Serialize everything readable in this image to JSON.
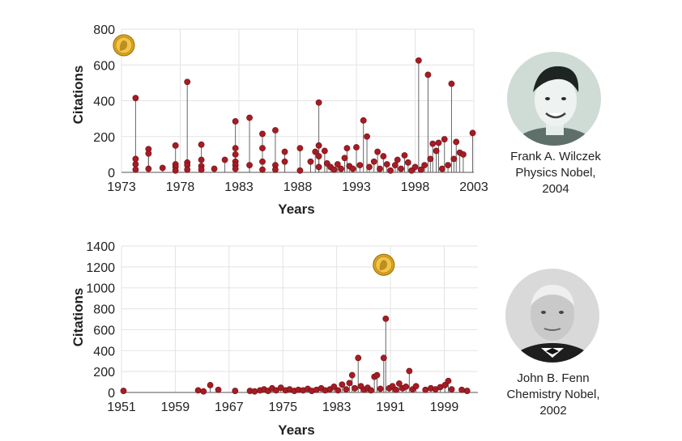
{
  "chart_data": [
    {
      "type": "scatter",
      "style": "lollipop",
      "xlabel": "Years",
      "ylabel": "Citations",
      "xlim": [
        1973,
        2003
      ],
      "ylim": [
        0,
        800
      ],
      "xticks": [
        1973,
        1978,
        1983,
        1988,
        1993,
        1998,
        2003
      ],
      "yticks": [
        0,
        200,
        400,
        600,
        800
      ],
      "grid": true,
      "marker_color": "#a51c24",
      "prize_marker": {
        "icon": "nobel-medal-icon",
        "x": 1973.2,
        "y": 710
      },
      "points": [
        {
          "x": 1974.2,
          "y": 415
        },
        {
          "x": 1974.2,
          "y": 75
        },
        {
          "x": 1974.2,
          "y": 45
        },
        {
          "x": 1974.2,
          "y": 15
        },
        {
          "x": 1975.3,
          "y": 130
        },
        {
          "x": 1975.3,
          "y": 105
        },
        {
          "x": 1975.3,
          "y": 20
        },
        {
          "x": 1976.5,
          "y": 25
        },
        {
          "x": 1977.6,
          "y": 150
        },
        {
          "x": 1977.6,
          "y": 45
        },
        {
          "x": 1977.6,
          "y": 30
        },
        {
          "x": 1977.6,
          "y": 10
        },
        {
          "x": 1978.6,
          "y": 505
        },
        {
          "x": 1978.6,
          "y": 55
        },
        {
          "x": 1978.6,
          "y": 40
        },
        {
          "x": 1978.6,
          "y": 15
        },
        {
          "x": 1979.8,
          "y": 155
        },
        {
          "x": 1979.8,
          "y": 70
        },
        {
          "x": 1979.8,
          "y": 35
        },
        {
          "x": 1979.8,
          "y": 15
        },
        {
          "x": 1980.9,
          "y": 20
        },
        {
          "x": 1981.8,
          "y": 70
        },
        {
          "x": 1982.7,
          "y": 285
        },
        {
          "x": 1982.7,
          "y": 135
        },
        {
          "x": 1982.7,
          "y": 100
        },
        {
          "x": 1982.7,
          "y": 60
        },
        {
          "x": 1982.7,
          "y": 40
        },
        {
          "x": 1982.7,
          "y": 20
        },
        {
          "x": 1983.9,
          "y": 305
        },
        {
          "x": 1983.9,
          "y": 40
        },
        {
          "x": 1985.0,
          "y": 215
        },
        {
          "x": 1985.0,
          "y": 135
        },
        {
          "x": 1985.0,
          "y": 60
        },
        {
          "x": 1985.0,
          "y": 15
        },
        {
          "x": 1986.1,
          "y": 235
        },
        {
          "x": 1986.1,
          "y": 40
        },
        {
          "x": 1986.1,
          "y": 15
        },
        {
          "x": 1986.9,
          "y": 115
        },
        {
          "x": 1986.9,
          "y": 60
        },
        {
          "x": 1988.2,
          "y": 135
        },
        {
          "x": 1988.2,
          "y": 10
        },
        {
          "x": 1989.1,
          "y": 60
        },
        {
          "x": 1989.5,
          "y": 115
        },
        {
          "x": 1989.8,
          "y": 390
        },
        {
          "x": 1989.8,
          "y": 150
        },
        {
          "x": 1989.8,
          "y": 90
        },
        {
          "x": 1989.8,
          "y": 30
        },
        {
          "x": 1990.3,
          "y": 120
        },
        {
          "x": 1990.5,
          "y": 50
        },
        {
          "x": 1990.8,
          "y": 30
        },
        {
          "x": 1991.1,
          "y": 15
        },
        {
          "x": 1991.4,
          "y": 45
        },
        {
          "x": 1991.7,
          "y": 20
        },
        {
          "x": 1992.0,
          "y": 80
        },
        {
          "x": 1992.2,
          "y": 135
        },
        {
          "x": 1992.4,
          "y": 35
        },
        {
          "x": 1992.7,
          "y": 20
        },
        {
          "x": 1993.0,
          "y": 140
        },
        {
          "x": 1993.3,
          "y": 40
        },
        {
          "x": 1993.6,
          "y": 290
        },
        {
          "x": 1993.9,
          "y": 200
        },
        {
          "x": 1994.1,
          "y": 30
        },
        {
          "x": 1994.5,
          "y": 60
        },
        {
          "x": 1994.8,
          "y": 115
        },
        {
          "x": 1995.0,
          "y": 20
        },
        {
          "x": 1995.3,
          "y": 90
        },
        {
          "x": 1995.6,
          "y": 45
        },
        {
          "x": 1995.9,
          "y": 10
        },
        {
          "x": 1996.3,
          "y": 40
        },
        {
          "x": 1996.5,
          "y": 70
        },
        {
          "x": 1996.8,
          "y": 20
        },
        {
          "x": 1997.1,
          "y": 95
        },
        {
          "x": 1997.4,
          "y": 55
        },
        {
          "x": 1997.7,
          "y": 10
        },
        {
          "x": 1998.0,
          "y": 30
        },
        {
          "x": 1998.3,
          "y": 625
        },
        {
          "x": 1998.5,
          "y": 15
        },
        {
          "x": 1998.8,
          "y": 40
        },
        {
          "x": 1999.1,
          "y": 545
        },
        {
          "x": 1999.3,
          "y": 75
        },
        {
          "x": 1999.5,
          "y": 160
        },
        {
          "x": 1999.8,
          "y": 120
        },
        {
          "x": 2000.0,
          "y": 165
        },
        {
          "x": 2000.3,
          "y": 20
        },
        {
          "x": 2000.5,
          "y": 185
        },
        {
          "x": 2000.8,
          "y": 40
        },
        {
          "x": 2001.1,
          "y": 495
        },
        {
          "x": 2001.3,
          "y": 75
        },
        {
          "x": 2001.5,
          "y": 170
        },
        {
          "x": 2001.8,
          "y": 110
        },
        {
          "x": 2002.1,
          "y": 100
        },
        {
          "x": 2002.9,
          "y": 220
        }
      ]
    },
    {
      "type": "scatter",
      "style": "lollipop",
      "xlabel": "Years",
      "ylabel": "Citations",
      "xlim": [
        1951,
        2004
      ],
      "ylim": [
        0,
        1400
      ],
      "xticks": [
        1951,
        1959,
        1967,
        1975,
        1983,
        1991,
        1999
      ],
      "yticks": [
        0,
        200,
        400,
        600,
        800,
        1000,
        1200,
        1400
      ],
      "grid": true,
      "marker_color": "#a51c24",
      "prize_marker": {
        "icon": "nobel-medal-icon",
        "x": 1990.0,
        "y": 1220
      },
      "points": [
        {
          "x": 1951.3,
          "y": 15
        },
        {
          "x": 1962.4,
          "y": 20
        },
        {
          "x": 1963.2,
          "y": 10
        },
        {
          "x": 1964.2,
          "y": 70
        },
        {
          "x": 1965.4,
          "y": 25
        },
        {
          "x": 1967.9,
          "y": 15
        },
        {
          "x": 1970.1,
          "y": 15
        },
        {
          "x": 1970.8,
          "y": 10
        },
        {
          "x": 1971.6,
          "y": 20
        },
        {
          "x": 1972.2,
          "y": 30
        },
        {
          "x": 1972.8,
          "y": 15
        },
        {
          "x": 1973.4,
          "y": 40
        },
        {
          "x": 1974.0,
          "y": 20
        },
        {
          "x": 1974.7,
          "y": 45
        },
        {
          "x": 1975.4,
          "y": 20
        },
        {
          "x": 1976.0,
          "y": 30
        },
        {
          "x": 1976.7,
          "y": 15
        },
        {
          "x": 1977.3,
          "y": 25
        },
        {
          "x": 1978.0,
          "y": 20
        },
        {
          "x": 1978.7,
          "y": 35
        },
        {
          "x": 1979.3,
          "y": 15
        },
        {
          "x": 1980.0,
          "y": 25
        },
        {
          "x": 1980.7,
          "y": 40
        },
        {
          "x": 1981.3,
          "y": 20
        },
        {
          "x": 1982.0,
          "y": 30
        },
        {
          "x": 1982.6,
          "y": 55
        },
        {
          "x": 1983.2,
          "y": 20
        },
        {
          "x": 1983.8,
          "y": 75
        },
        {
          "x": 1984.4,
          "y": 30
        },
        {
          "x": 1984.9,
          "y": 90
        },
        {
          "x": 1985.3,
          "y": 165
        },
        {
          "x": 1985.7,
          "y": 40
        },
        {
          "x": 1986.2,
          "y": 330
        },
        {
          "x": 1986.6,
          "y": 60
        },
        {
          "x": 1987.1,
          "y": 25
        },
        {
          "x": 1987.6,
          "y": 45
        },
        {
          "x": 1988.1,
          "y": 20
        },
        {
          "x": 1988.6,
          "y": 150
        },
        {
          "x": 1989.0,
          "y": 165
        },
        {
          "x": 1989.5,
          "y": 35
        },
        {
          "x": 1990.0,
          "y": 330
        },
        {
          "x": 1990.3,
          "y": 705
        },
        {
          "x": 1990.8,
          "y": 40
        },
        {
          "x": 1991.3,
          "y": 60
        },
        {
          "x": 1991.8,
          "y": 25
        },
        {
          "x": 1992.3,
          "y": 85
        },
        {
          "x": 1992.8,
          "y": 40
        },
        {
          "x": 1993.3,
          "y": 55
        },
        {
          "x": 1993.8,
          "y": 205
        },
        {
          "x": 1994.3,
          "y": 30
        },
        {
          "x": 1994.8,
          "y": 60
        },
        {
          "x": 1996.2,
          "y": 25
        },
        {
          "x": 1997.0,
          "y": 40
        },
        {
          "x": 1997.7,
          "y": 30
        },
        {
          "x": 1998.4,
          "y": 50
        },
        {
          "x": 1999.1,
          "y": 70
        },
        {
          "x": 1999.6,
          "y": 110
        },
        {
          "x": 2000.1,
          "y": 30
        },
        {
          "x": 2001.6,
          "y": 25
        },
        {
          "x": 2002.4,
          "y": 15
        }
      ]
    }
  ],
  "laureates": [
    {
      "name": "Frank A. Wilczek",
      "field": "Physics Nobel,",
      "year": "2004",
      "portrait_icon": "portrait-photo"
    },
    {
      "name": "John B. Fenn",
      "field": "Chemistry Nobel,",
      "year": "2002",
      "portrait_icon": "portrait-photo"
    }
  ]
}
